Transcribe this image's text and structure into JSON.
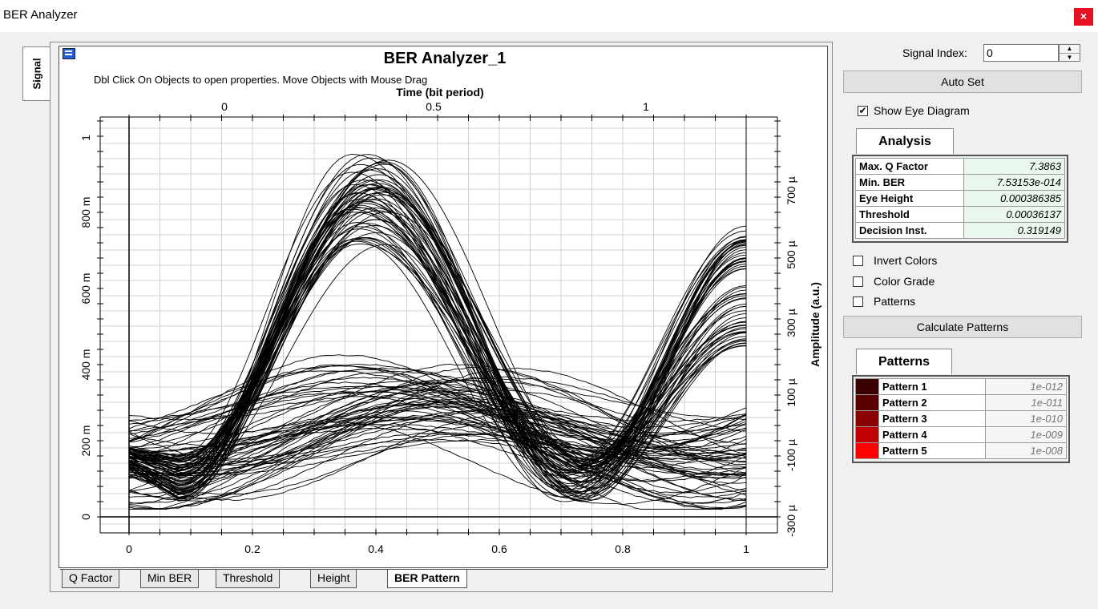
{
  "window": {
    "title": "BER Analyzer",
    "close_label": "×"
  },
  "left_tab": {
    "label": "Signal"
  },
  "graph": {
    "title": "BER Analyzer_1",
    "subtitle": "Dbl Click On Objects to open properties.  Move Objects with Mouse Drag",
    "top_axis_label": "Time (bit period)",
    "right_axis_label": "Amplitude (a.u.)",
    "top_ticks": [
      "0",
      "0.5",
      "1"
    ],
    "bottom_ticks": [
      "0",
      "0.2",
      "0.4",
      "0.6",
      "0.8",
      "1"
    ],
    "left_ticks": [
      "1",
      "800 m",
      "600 m",
      "400 m",
      "200 m",
      "0"
    ],
    "right_ticks": [
      "700 µ",
      "500 µ",
      "300 µ",
      "100 µ",
      "-100 µ",
      "-300 µ"
    ]
  },
  "bottom_tabs": [
    {
      "label": "Q Factor",
      "active": false
    },
    {
      "label": "Min BER",
      "active": false
    },
    {
      "label": "Threshold",
      "active": false
    },
    {
      "label": "Height",
      "active": false
    },
    {
      "label": "BER Pattern",
      "active": true
    }
  ],
  "controls": {
    "signal_index_label": "Signal Index:",
    "signal_index_value": "0",
    "auto_set_label": "Auto Set",
    "show_eye_label": "Show Eye Diagram",
    "show_eye_checked": true,
    "invert_colors_label": "Invert Colors",
    "color_grade_label": "Color Grade",
    "patterns_label": "Patterns",
    "calc_patterns_label": "Calculate Patterns"
  },
  "analysis": {
    "tab_label": "Analysis",
    "rows": [
      {
        "key": "Max. Q Factor",
        "value": "7.3863"
      },
      {
        "key": "Min. BER",
        "value": "7.53153e-014"
      },
      {
        "key": "Eye Height",
        "value": "0.000386385"
      },
      {
        "key": "Threshold",
        "value": "0.00036137"
      },
      {
        "key": "Decision Inst.",
        "value": "0.319149"
      }
    ]
  },
  "patterns": {
    "tab_label": "Patterns",
    "rows": [
      {
        "name": "Pattern 1",
        "value": "1e-012",
        "color": "#3a0000"
      },
      {
        "name": "Pattern 2",
        "value": "1e-011",
        "color": "#5a0000"
      },
      {
        "name": "Pattern 3",
        "value": "1e-010",
        "color": "#8a0000"
      },
      {
        "name": "Pattern 4",
        "value": "1e-009",
        "color": "#c00000"
      },
      {
        "name": "Pattern 5",
        "value": "1e-008",
        "color": "#ff0000"
      }
    ]
  }
}
